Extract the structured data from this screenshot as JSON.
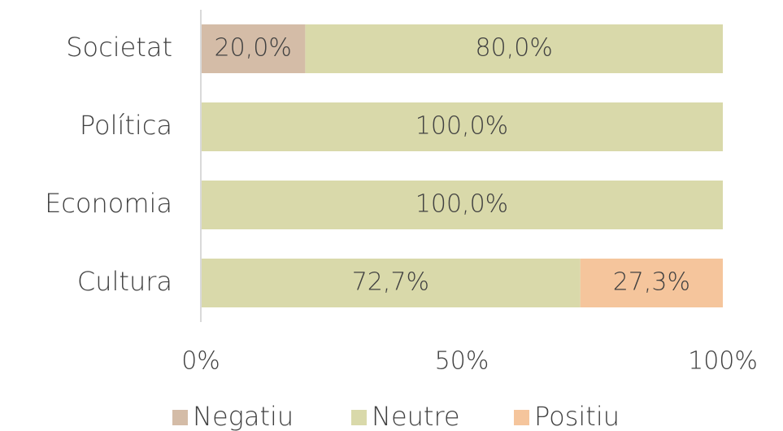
{
  "chart_data": {
    "type": "stacked-bar-horizontal",
    "categories": [
      "Societat",
      "Política",
      "Economia",
      "Cultura"
    ],
    "series": [
      {
        "name": "Negatiu",
        "color": "#d4bca7",
        "values": [
          20,
          0,
          0,
          0
        ],
        "value_labels": [
          "20,0%",
          null,
          null,
          null
        ]
      },
      {
        "name": "Neutre",
        "color": "#d9d9aa",
        "values": [
          80,
          100,
          100,
          72.7
        ],
        "value_labels": [
          "80,0%",
          "100,0%",
          "100,0%",
          "72,7%"
        ]
      },
      {
        "name": "Positiu",
        "color": "#f5c59c",
        "values": [
          0,
          0,
          0,
          27.3
        ],
        "value_labels": [
          null,
          null,
          null,
          "27,3%"
        ]
      }
    ],
    "xlim": [
      0,
      100
    ],
    "xticks": [
      {
        "value": 0,
        "label": "0%"
      },
      {
        "value": 50,
        "label": "50%"
      },
      {
        "value": 100,
        "label": "100%"
      }
    ],
    "legend": "bottom"
  }
}
